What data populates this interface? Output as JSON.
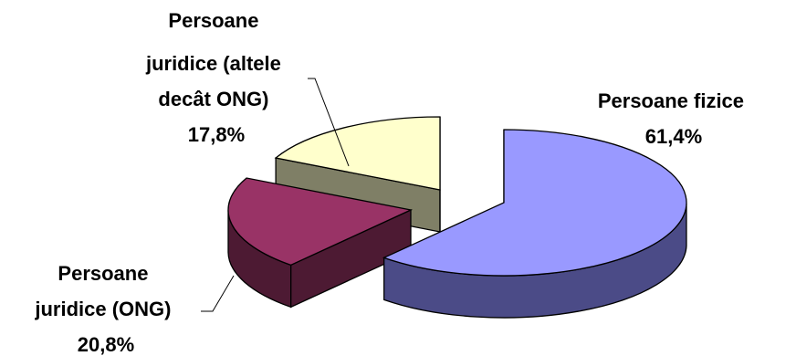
{
  "chart_data": {
    "type": "pie",
    "style": "3d-exploded",
    "title": "",
    "slices": [
      {
        "name": "Persoane fizice",
        "value": 61.4,
        "value_label": "61,4%",
        "label_lines": [
          "Persoane fizice",
          "61,4%"
        ],
        "top_color": "#9999ff",
        "side_color": "#4b4b87"
      },
      {
        "name": "Persoane juridice (ONG)",
        "value": 20.8,
        "value_label": "20,8%",
        "label_lines": [
          "Persoane",
          "juridice (ONG)",
          "20,8%"
        ],
        "top_color": "#993366",
        "side_color": "#4d1a33"
      },
      {
        "name": "Persoane juridice (altele decât ONG)",
        "value": 17.8,
        "value_label": "17,8%",
        "label_lines": [
          "Persoane",
          "juridice (altele",
          "decât ONG)",
          "17,8%"
        ],
        "top_color": "#ffffcc",
        "side_color": "#7f7f66"
      }
    ]
  }
}
